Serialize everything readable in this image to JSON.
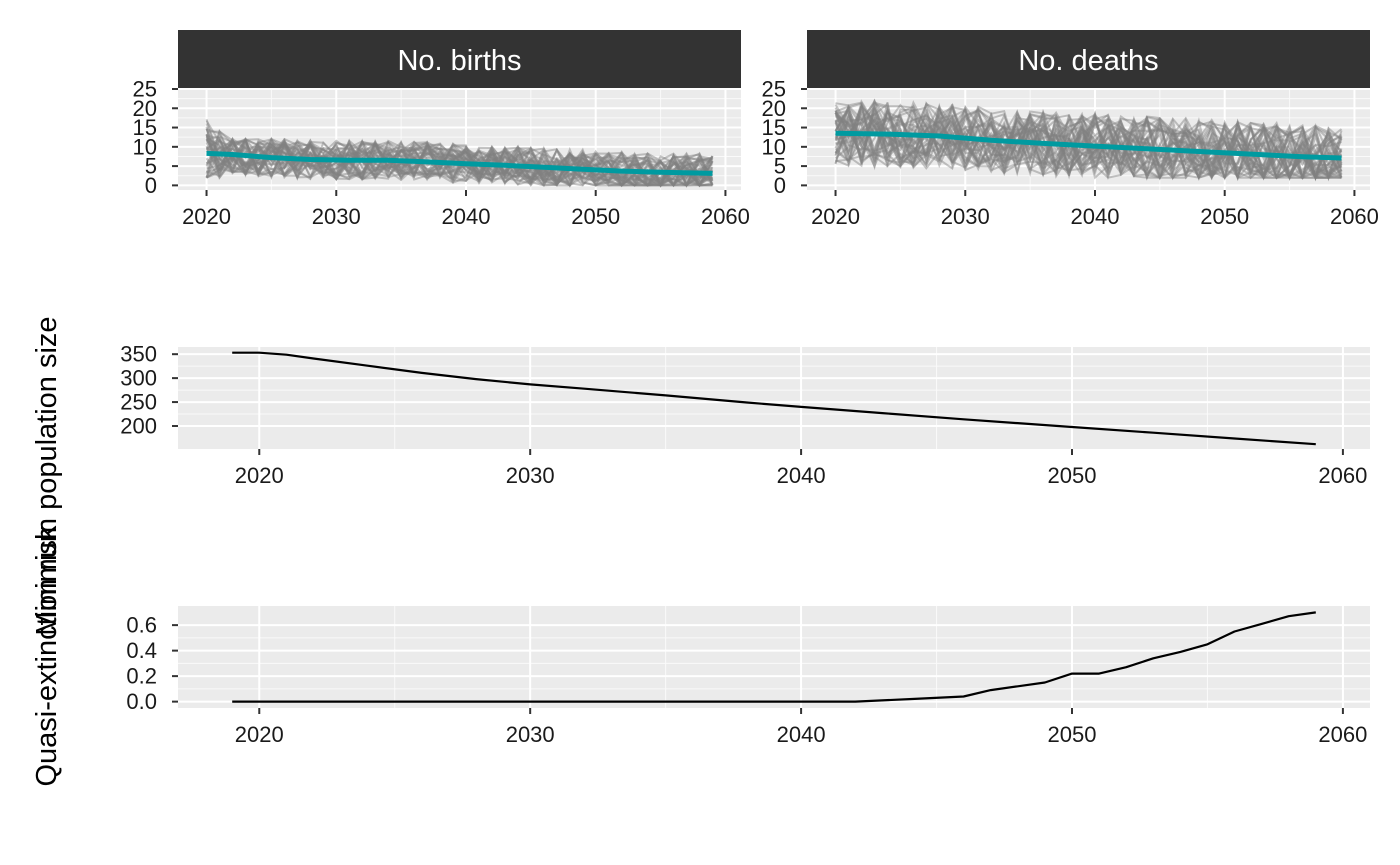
{
  "chart_data": [
    {
      "type": "line",
      "panel": "facet",
      "facet_label": "No. births",
      "x_ticks": [
        2020,
        2030,
        2040,
        2050,
        2060
      ],
      "y_ticks": [
        0,
        5,
        10,
        15,
        20,
        25
      ],
      "xlim": [
        2017.8,
        2061.2
      ],
      "ylim": [
        -1.2,
        25
      ],
      "ribbon": {
        "name": "simulation replicates",
        "color": "#808080",
        "y_low_start": 2,
        "y_high_start": 23,
        "y_low": 0,
        "y_high": 12
      },
      "series": [
        {
          "name": "mean",
          "color": "#009AA0",
          "x": [
            2020,
            2022,
            2025,
            2028,
            2031,
            2034,
            2037,
            2040,
            2043,
            2046,
            2049,
            2052,
            2055,
            2059
          ],
          "values": [
            8.3,
            8.0,
            7.2,
            6.7,
            6.5,
            6.5,
            6.1,
            5.6,
            5.2,
            4.7,
            4.2,
            3.7,
            3.4,
            3.1
          ]
        }
      ],
      "grid": true
    },
    {
      "type": "line",
      "panel": "facet",
      "facet_label": "No. deaths",
      "x_ticks": [
        2020,
        2030,
        2040,
        2050,
        2060
      ],
      "y_ticks": [
        0,
        5,
        10,
        15,
        20,
        25
      ],
      "xlim": [
        2017.8,
        2061.2
      ],
      "ylim": [
        -1.2,
        25
      ],
      "ribbon": {
        "name": "simulation replicates",
        "color": "#808080",
        "y_low": 2,
        "y_high": 22
      },
      "series": [
        {
          "name": "mean",
          "color": "#009AA0",
          "x": [
            2020,
            2024,
            2028,
            2032,
            2036,
            2040,
            2044,
            2048,
            2052,
            2056,
            2059
          ],
          "values": [
            13.5,
            13.3,
            12.8,
            11.7,
            10.9,
            10.2,
            9.5,
            8.8,
            8.1,
            7.4,
            7.1
          ]
        }
      ],
      "grid": true
    },
    {
      "type": "line",
      "panel": "wide",
      "ylabel": "Minimum population size",
      "x_ticks": [
        2020,
        2030,
        2040,
        2050,
        2060
      ],
      "y_ticks": [
        200,
        250,
        300,
        350
      ],
      "xlim": [
        2017,
        2061
      ],
      "ylim": [
        152,
        365
      ],
      "series": [
        {
          "color": "#000000",
          "x": [
            2019,
            2020,
            2021,
            2022,
            2024,
            2026,
            2028,
            2030,
            2032,
            2035,
            2038,
            2040,
            2043,
            2046,
            2050,
            2053,
            2056,
            2059
          ],
          "values": [
            353,
            353,
            349,
            341,
            326,
            311,
            298,
            287,
            278,
            264,
            249,
            240,
            227,
            214,
            198,
            186,
            174,
            162
          ]
        }
      ],
      "grid": true
    },
    {
      "type": "line",
      "panel": "wide",
      "ylabel": "Quasi-extinction risk",
      "x_ticks": [
        2020,
        2030,
        2040,
        2050,
        2060
      ],
      "y_ticks": [
        0.0,
        0.2,
        0.4,
        0.6
      ],
      "xlim": [
        2017,
        2061
      ],
      "ylim": [
        -0.05,
        0.75
      ],
      "series": [
        {
          "color": "#000000",
          "x": [
            2019,
            2042,
            2044,
            2046,
            2047,
            2049,
            2050,
            2051,
            2052,
            2053,
            2054,
            2055,
            2056,
            2057,
            2058,
            2059
          ],
          "values": [
            0.0,
            0.0,
            0.02,
            0.04,
            0.09,
            0.15,
            0.22,
            0.22,
            0.27,
            0.34,
            0.39,
            0.45,
            0.55,
            0.61,
            0.67,
            0.7
          ]
        }
      ],
      "grid": true
    }
  ],
  "y_axis_titles": [
    "Minimum population size",
    "Quasi-extinction risk"
  ],
  "colors": {
    "panel_bg": "#EBEBEB",
    "grid_major": "#FFFFFF",
    "strip_bg": "#333333",
    "replicates": "#808080",
    "mean_line": "#009AA0",
    "line": "#000000"
  }
}
